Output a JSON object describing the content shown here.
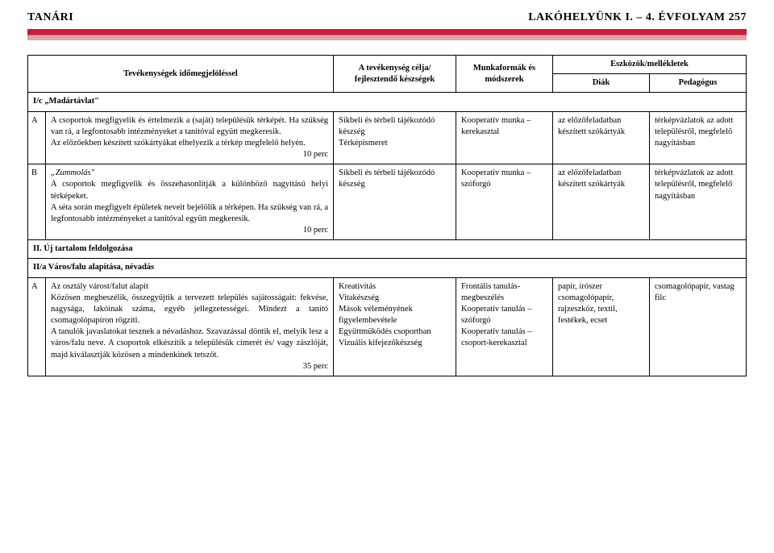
{
  "header": {
    "left": "TANÁRI",
    "right": "LAKÓHELYÜNK I. – 4. ÉVFOLYAM   257"
  },
  "table": {
    "head": {
      "c1": "Tevékenységek időmegjelöléssel",
      "c2": "A tevékenység célja/ fejlesztendő készségek",
      "c3": "Munkaformák és módszerek",
      "c4": "Eszközök/mellékletek",
      "c4a": "Diák",
      "c4b": "Pedagógus"
    },
    "section1": "I/c „Madártávlat\"",
    "rowA": {
      "letter": "A",
      "activity_p1": "A csoportok megfigyelik és értelmezik a (saját) településük térképét. Ha szükség van rá, a legfontosabb intézményeket a tanítóval együtt megkeresik.",
      "activity_p2": "Az előzőekben készített szókártyákat elhelyezik a térkép megfelelő helyén.",
      "activity_time": "10 perc",
      "skill": "Síkbeli és térbeli tájékozódó készség\nTérképismeret",
      "method": "Kooperatív munka – kerekasztal",
      "diak": "az előzőfeladatban készített szókártyák",
      "ped": "térképvázlatok az adott településről, megfelelő nagyításban"
    },
    "rowB": {
      "letter": "B",
      "activity_title": "„Zummolás\"",
      "activity_p1": "A csoportok megfigyelik és összehasonlítják a különböző nagyítású helyi térképeket.",
      "activity_p2": "A séta során megfigyelt épületek neveit bejelölik a térképen. Ha szükség van rá, a legfontosabb intézményeket a tanítóval együtt megkeresik.",
      "activity_time": "10 perc",
      "skill": "Síkbeli és térbeli tájékozódó készség",
      "method": "Kooperatív munka – szóforgó",
      "diak": "az előzőfeladatban készített szókártyák",
      "ped": "térképvázlatok az adott településről, megfelelő nagyításban"
    },
    "section2": "II. Új tartalom feldolgozása",
    "section2a": "II/a Város/falu alapítása, névadás",
    "rowA2": {
      "letter": "A",
      "activity_title": "Az osztály várost/falut alapít",
      "activity_p1": "Közösen megbeszélik, összegyűjtik a tervezett település sajátosságait: fekvése, nagysága, lakóinak száma, egyéb jellegzetességei. Mindezt a tanító csomagolópapíron rögzíti.",
      "activity_p2": "A tanulók ja­vas­la­to­kat tesznek a névadáshoz. Szavazással döntik el, melyik lesz a város/falu neve. A csoportok elkészítik a településük címerét és/ vagy zászlóját, majd kiválasztják közösen a mindenkinek tetszőt.",
      "activity_time": "35 perc",
      "skill": "Kreativitás\nVitakészség\nMások véleményének figyelembevétele\nEgyüttműködés csoportban\nVizuális kifejezőkészség",
      "method": "Frontális tanulás-megbeszélés\nKooperatív tanulás – szóforgó\nKooperatív tanulás – csoport-kerekasztal",
      "diak": "papír, írószer csomagolópapír, rajzeszköz, textil, festékek, ecset",
      "ped": "csomagolópapír, vastag filc"
    }
  }
}
